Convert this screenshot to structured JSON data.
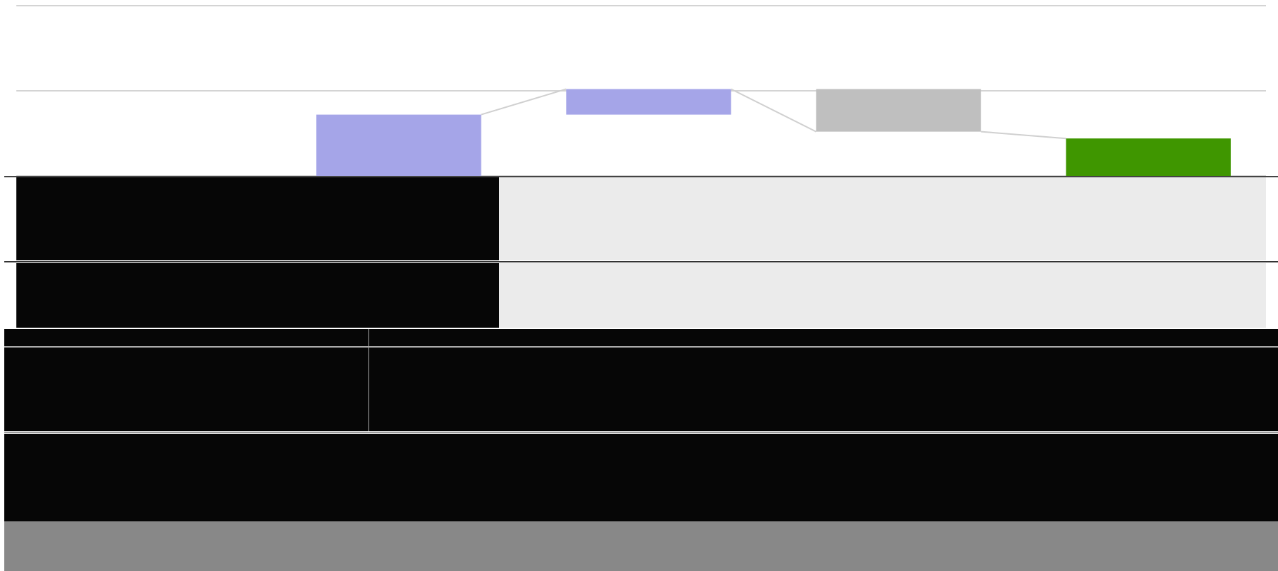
{
  "chart_data": {
    "type": "waterfall",
    "categories": [
      null,
      null,
      null,
      null,
      null
    ],
    "values": [
      0,
      0.72,
      0.3,
      -0.5,
      0.44
    ],
    "measure": [
      "relative",
      "relative",
      "relative",
      "relative",
      "total"
    ],
    "colors": [
      "#a5a5e8",
      "#a5a5e8",
      "#a5a5e8",
      "#bfbfbf",
      "#3f9600"
    ],
    "ylim": [
      0,
      2
    ],
    "yticks": [
      0,
      1,
      2
    ],
    "grid": true
  }
}
